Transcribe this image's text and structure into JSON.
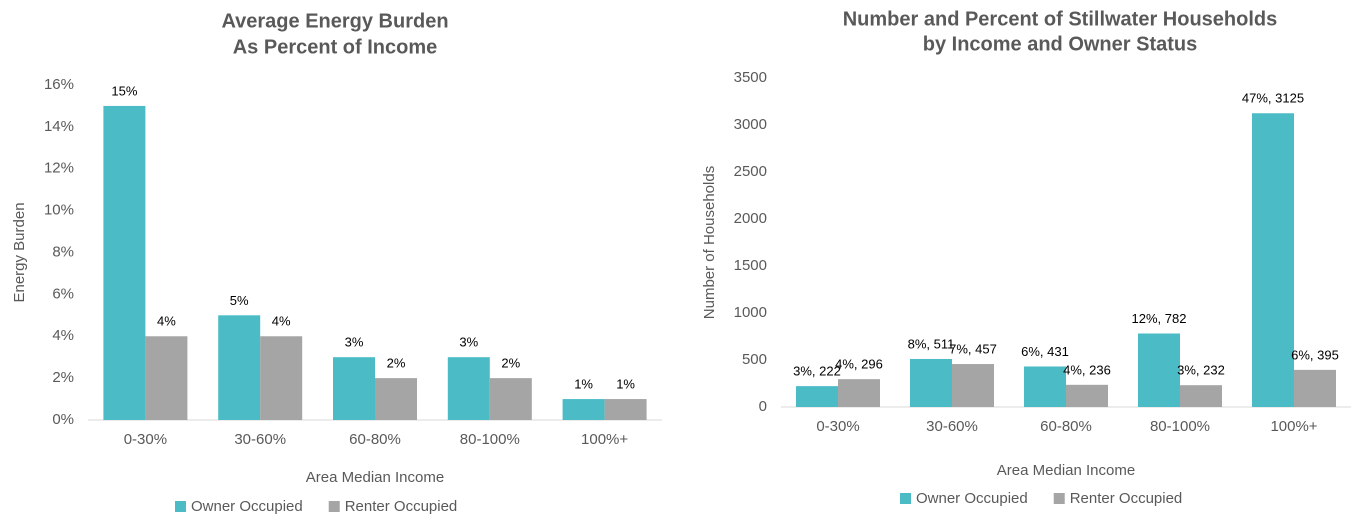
{
  "chart_data": [
    {
      "type": "bar",
      "title": "Average Energy Burden",
      "subtitle": "As Percent of Income",
      "x_label": "Area Median Income",
      "y_label": "Energy Burden",
      "categories": [
        "0-30%",
        "30-60%",
        "60-80%",
        "80-100%",
        "100%+"
      ],
      "series": [
        {
          "name": "Owner Occupied",
          "color": "#4bbcc6",
          "values": [
            15,
            5,
            3,
            3,
            1
          ],
          "value_labels": [
            "15%",
            "5%",
            "3%",
            "3%",
            "1%"
          ]
        },
        {
          "name": "Renter Occupied",
          "color": "#a5a5a5",
          "values": [
            4,
            4,
            2,
            2,
            1
          ],
          "value_labels": [
            "4%",
            "4%",
            "2%",
            "2%",
            "1%"
          ]
        }
      ],
      "ylim": [
        0,
        16
      ],
      "yticks": [
        {
          "value": 0,
          "label": "0%"
        },
        {
          "value": 2,
          "label": "2%"
        },
        {
          "value": 4,
          "label": "4%"
        },
        {
          "value": 6,
          "label": "6%"
        },
        {
          "value": 8,
          "label": "8%"
        },
        {
          "value": 10,
          "label": "10%"
        },
        {
          "value": 12,
          "label": "12%"
        },
        {
          "value": 14,
          "label": "14%"
        },
        {
          "value": 16,
          "label": "16%"
        }
      ],
      "legend": "bottom",
      "grid": false
    },
    {
      "type": "bar",
      "title": "Number and Percent of Stillwater Households",
      "subtitle": "by Income and Owner Status",
      "x_label": "Area Median Income",
      "y_label": "Number of Households",
      "categories": [
        "0-30%",
        "30-60%",
        "60-80%",
        "80-100%",
        "100%+"
      ],
      "series": [
        {
          "name": "Owner Occupied",
          "color": "#4bbcc6",
          "values": [
            222,
            511,
            431,
            782,
            3125
          ],
          "value_labels": [
            "3%, 222",
            "8%, 511",
            "6%, 431",
            "12%, 782",
            "47%, 3125"
          ]
        },
        {
          "name": "Renter Occupied",
          "color": "#a5a5a5",
          "values": [
            296,
            457,
            236,
            232,
            395
          ],
          "value_labels": [
            "4%, 296",
            "7%, 457",
            "4%, 236",
            "3%, 232",
            "6%, 395"
          ]
        }
      ],
      "ylim": [
        0,
        3500
      ],
      "yticks": [
        0,
        500,
        1000,
        1500,
        2000,
        2500,
        3000,
        3500
      ],
      "legend": "bottom",
      "grid": false
    }
  ]
}
